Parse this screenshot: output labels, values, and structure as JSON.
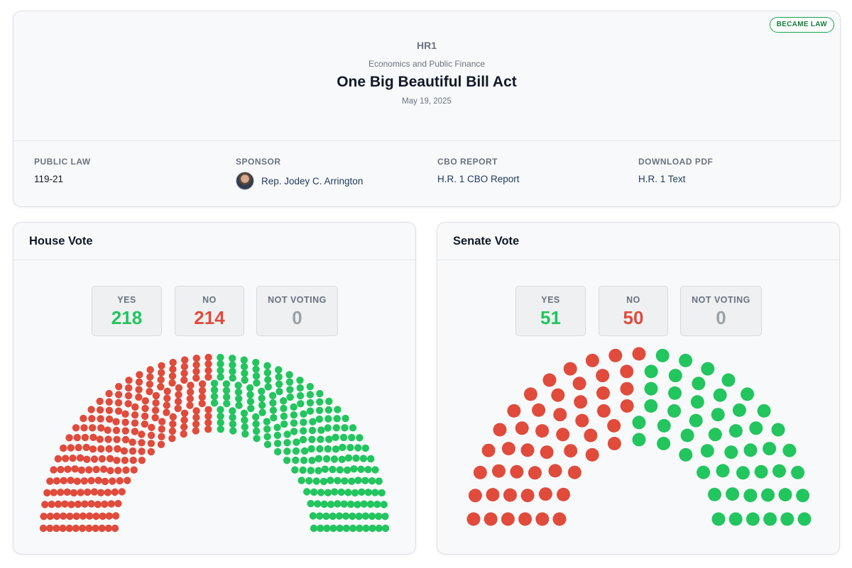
{
  "bill": {
    "id": "HR1",
    "category": "Economics and Public Finance",
    "title": "One Big Beautiful Bill Act",
    "date": "May 19, 2025",
    "status": "BECAME LAW",
    "status_color": "#16a34a",
    "meta": {
      "public_law": {
        "label": "PUBLIC LAW",
        "value": "119-21"
      },
      "sponsor": {
        "label": "SPONSOR",
        "value": "Rep. Jodey C. Arrington",
        "icon": "avatar-photo"
      },
      "cbo_report": {
        "label": "CBO REPORT",
        "value": "H.R. 1 CBO Report"
      },
      "download_pdf": {
        "label": "DOWNLOAD PDF",
        "value": "H.R. 1 Text"
      }
    }
  },
  "colors": {
    "yes": "#22c55e",
    "no": "#e04b3c",
    "not_voting": "#9ca3a8"
  },
  "house": {
    "title": "House Vote",
    "yes_label": "YES",
    "no_label": "NO",
    "nv_label": "NOT VOTING",
    "yes": "218",
    "no": "214",
    "not_voting": "0"
  },
  "senate": {
    "title": "Senate Vote",
    "yes_label": "YES",
    "no_label": "NO",
    "nv_label": "NOT VOTING",
    "yes": "51",
    "no": "50",
    "not_voting": "0"
  }
}
